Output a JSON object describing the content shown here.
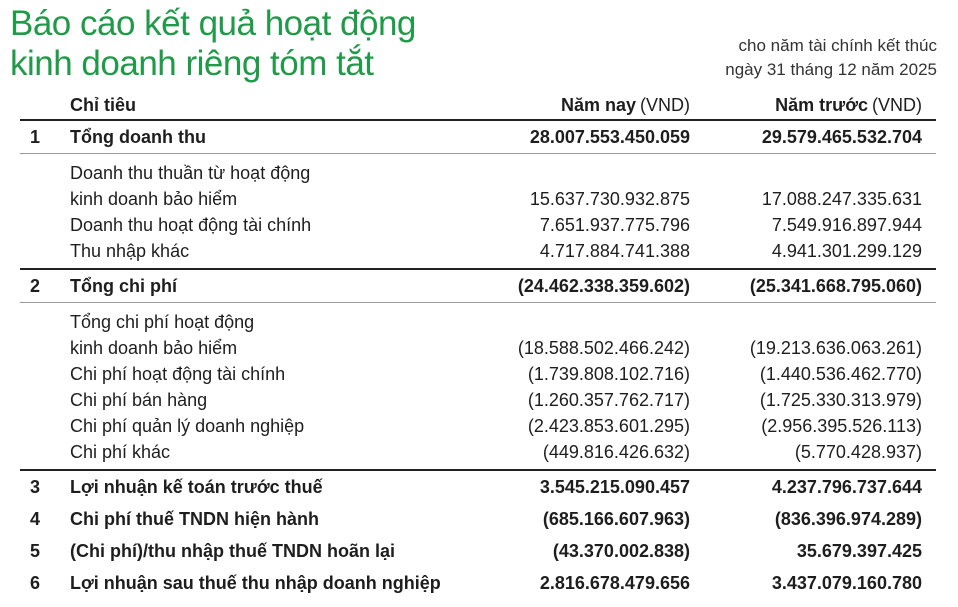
{
  "header": {
    "title_lines": [
      "Báo cáo kết quả hoạt động",
      "kinh doanh riêng tóm tắt"
    ],
    "period_lines": [
      "cho năm tài chính kết thúc",
      "ngày 31 tháng 12 năm 2025"
    ]
  },
  "table": {
    "columns": {
      "item": "Chỉ tiêu",
      "current": {
        "label": "Năm nay",
        "unit": "(VND)"
      },
      "prior": {
        "label": "Năm trước",
        "unit": "(VND)"
      }
    },
    "sections": [
      {
        "number": "1",
        "label": [
          "Tổng doanh thu"
        ],
        "current": "28.007.553.450.059",
        "prior": "29.579.465.532.704",
        "items": [
          {
            "label": [
              "Doanh thu thuần từ hoạt động",
              "kinh doanh bảo hiểm"
            ],
            "current": "15.637.730.932.875",
            "prior": "17.088.247.335.631"
          },
          {
            "label": [
              "Doanh thu hoạt động tài chính"
            ],
            "current": "7.651.937.775.796",
            "prior": "7.549.916.897.944"
          },
          {
            "label": [
              "Thu nhập khác"
            ],
            "current": "4.717.884.741.388",
            "prior": "4.941.301.299.129"
          }
        ]
      },
      {
        "number": "2",
        "label": [
          "Tổng chi phí"
        ],
        "current": "(24.462.338.359.602)",
        "prior": "(25.341.668.795.060)",
        "items": [
          {
            "label": [
              "Tổng chi phí hoạt động",
              "kinh doanh bảo hiểm"
            ],
            "current": "(18.588.502.466.242)",
            "prior": "(19.213.636.063.261)"
          },
          {
            "label": [
              "Chi phí hoạt động tài chính"
            ],
            "current": "(1.739.808.102.716)",
            "prior": "(1.440.536.462.770)"
          },
          {
            "label": [
              "Chi phí bán hàng"
            ],
            "current": "(1.260.357.762.717)",
            "prior": "(1.725.330.313.979)"
          },
          {
            "label": [
              "Chi phí quản lý doanh nghiệp"
            ],
            "current": "(2.423.853.601.295)",
            "prior": "(2.956.395.526.113)"
          },
          {
            "label": [
              "Chi phí khác"
            ],
            "current": "(449.816.426.632)",
            "prior": "(5.770.428.937)"
          }
        ]
      },
      {
        "number": "3",
        "label": [
          "Lợi nhuận kế toán trước thuế"
        ],
        "current": "3.545.215.090.457",
        "prior": "4.237.796.737.644",
        "items": []
      },
      {
        "number": "4",
        "label": [
          "Chi phí thuế TNDN hiện hành"
        ],
        "current": "(685.166.607.963)",
        "prior": "(836.396.974.289)",
        "items": []
      },
      {
        "number": "5",
        "label": [
          "(Chi phí)/thu nhập thuế TNDN hoãn lại"
        ],
        "current": "(43.370.002.838)",
        "prior": "35.679.397.425",
        "items": []
      },
      {
        "number": "6",
        "label": [
          "Lợi nhuận sau thuế thu nhập doanh nghiệp"
        ],
        "current": "2.816.678.479.656",
        "prior": "3.437.079.160.780",
        "items": []
      }
    ]
  }
}
